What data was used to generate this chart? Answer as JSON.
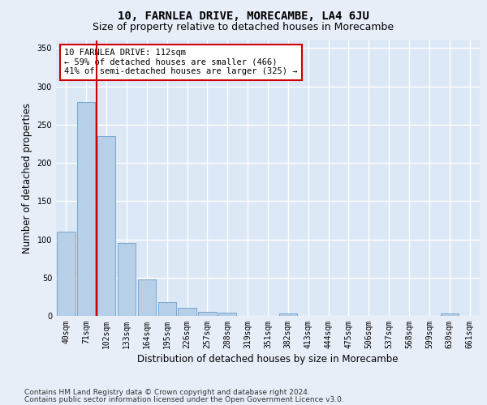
{
  "title": "10, FARNLEA DRIVE, MORECAMBE, LA4 6JU",
  "subtitle": "Size of property relative to detached houses in Morecambe",
  "xlabel": "Distribution of detached houses by size in Morecambe",
  "ylabel": "Number of detached properties",
  "categories": [
    "40sqm",
    "71sqm",
    "102sqm",
    "133sqm",
    "164sqm",
    "195sqm",
    "226sqm",
    "257sqm",
    "288sqm",
    "319sqm",
    "351sqm",
    "382sqm",
    "413sqm",
    "444sqm",
    "475sqm",
    "506sqm",
    "537sqm",
    "568sqm",
    "599sqm",
    "630sqm",
    "661sqm"
  ],
  "values": [
    110,
    280,
    235,
    95,
    48,
    18,
    11,
    5,
    4,
    0,
    0,
    3,
    0,
    0,
    0,
    0,
    0,
    0,
    0,
    3,
    0
  ],
  "bar_color": "#b8cfe8",
  "bar_edge_color": "#6a9fd0",
  "vline_x": 1.5,
  "vline_color": "#cc0000",
  "annotation_text": "10 FARNLEA DRIVE: 112sqm\n← 59% of detached houses are smaller (466)\n41% of semi-detached houses are larger (325) →",
  "annotation_box_color": "#ffffff",
  "annotation_box_edge_color": "#cc0000",
  "ylim": [
    0,
    360
  ],
  "yticks": [
    0,
    50,
    100,
    150,
    200,
    250,
    300,
    350
  ],
  "background_color": "#e8eef8",
  "plot_bg_color": "#dce8f5",
  "grid_color": "#ffffff",
  "footer_line1": "Contains HM Land Registry data © Crown copyright and database right 2024.",
  "footer_line2": "Contains public sector information licensed under the Open Government Licence v3.0.",
  "title_fontsize": 10,
  "subtitle_fontsize": 9,
  "xlabel_fontsize": 8.5,
  "ylabel_fontsize": 8.5,
  "tick_fontsize": 7,
  "annotation_fontsize": 7.5,
  "footer_fontsize": 6.5
}
